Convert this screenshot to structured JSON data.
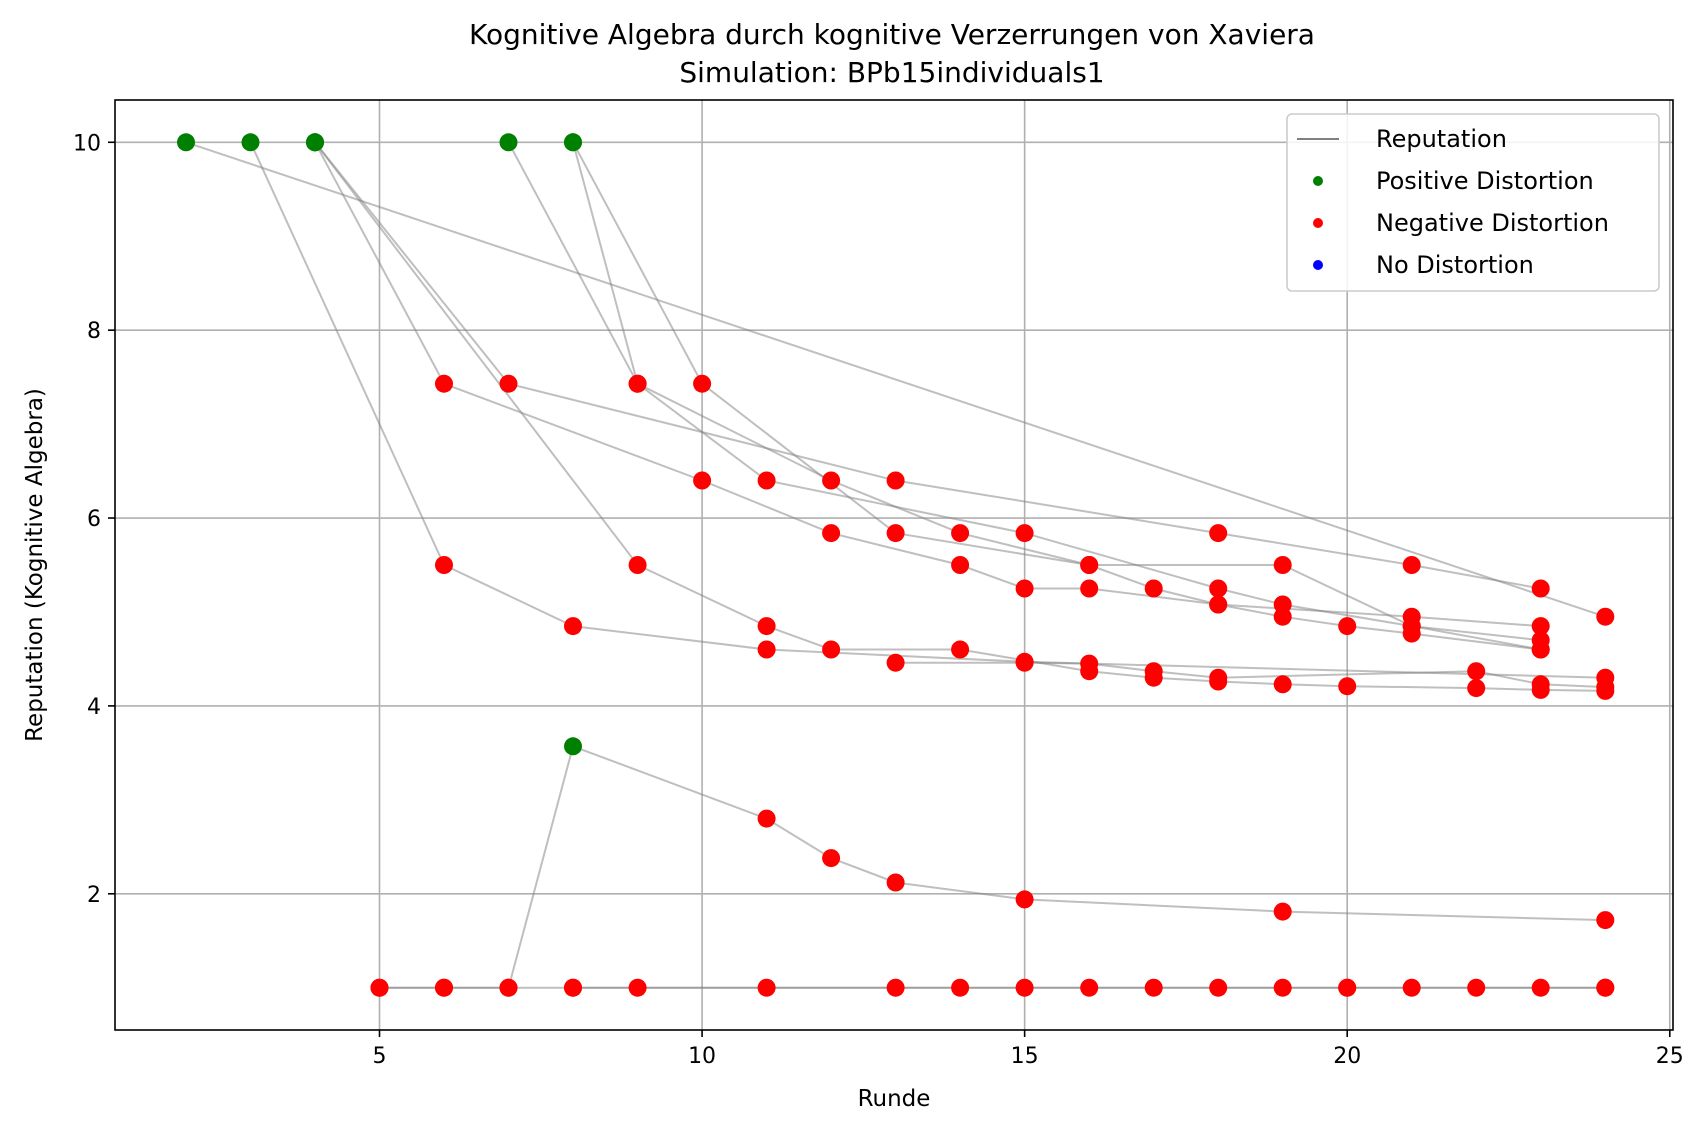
{
  "chart_data": {
    "type": "scatter",
    "title": "Kognitive Algebra durch kognitive Verzerrungen von Xaviera",
    "subtitle": "Simulation: BPb15individuals1",
    "xlabel": "Runde",
    "ylabel": "Reputation (Kognitive Algebra)",
    "xlim": [
      0.9,
      25.05
    ],
    "ylim": [
      0.55,
      10.45
    ],
    "xticks": [
      5,
      10,
      15,
      20,
      25
    ],
    "yticks": [
      2,
      4,
      6,
      8,
      10
    ],
    "grid": true,
    "legend_position": "top-right",
    "legend": [
      {
        "label": "Reputation",
        "kind": "line",
        "color": "#808080"
      },
      {
        "label": "Positive Distortion",
        "kind": "marker",
        "color": "#008000"
      },
      {
        "label": "Negative Distortion",
        "kind": "marker",
        "color": "#ff0000"
      },
      {
        "label": "No Distortion",
        "kind": "marker",
        "color": "#0000ff"
      }
    ],
    "colors": {
      "positive": "#008000",
      "negative": "#ff0000",
      "none": "#0000ff",
      "line": "#808080"
    },
    "series": [
      {
        "points": [
          [
            2,
            10,
            "positive"
          ],
          [
            24,
            4.95,
            "negative"
          ]
        ]
      },
      {
        "points": [
          [
            3,
            10,
            "positive"
          ],
          [
            6,
            5.5,
            "negative"
          ],
          [
            8,
            4.85,
            "negative"
          ],
          [
            11,
            4.6,
            "negative"
          ],
          [
            15,
            4.47,
            "negative"
          ],
          [
            24,
            4.3,
            "negative"
          ]
        ]
      },
      {
        "points": [
          [
            4,
            10,
            "positive"
          ],
          [
            9,
            5.5,
            "negative"
          ],
          [
            11,
            4.85,
            "negative"
          ],
          [
            12,
            4.6,
            "negative"
          ],
          [
            14,
            4.6,
            "negative"
          ],
          [
            16,
            4.37,
            "negative"
          ],
          [
            17,
            4.3,
            "negative"
          ],
          [
            18,
            4.26,
            "negative"
          ],
          [
            19,
            4.23,
            "negative"
          ],
          [
            20,
            4.21,
            "negative"
          ],
          [
            22,
            4.19,
            "negative"
          ],
          [
            23,
            4.17,
            "negative"
          ],
          [
            24,
            4.16,
            "negative"
          ]
        ]
      },
      {
        "points": [
          [
            4,
            10,
            "positive"
          ],
          [
            7,
            7.43,
            "negative"
          ],
          [
            13,
            6.4,
            "negative"
          ],
          [
            18,
            5.84,
            "negative"
          ],
          [
            21,
            5.5,
            "negative"
          ],
          [
            23,
            5.25,
            "negative"
          ]
        ]
      },
      {
        "points": [
          [
            4,
            10,
            "positive"
          ],
          [
            6,
            7.43,
            "negative"
          ],
          [
            10,
            6.4,
            "negative"
          ],
          [
            12,
            5.84,
            "negative"
          ],
          [
            14,
            5.5,
            "negative"
          ],
          [
            15,
            5.25,
            "negative"
          ],
          [
            16,
            5.25,
            "negative"
          ],
          [
            18,
            5.08,
            "negative"
          ],
          [
            21,
            4.95,
            "negative"
          ],
          [
            23,
            4.85,
            "negative"
          ]
        ]
      },
      {
        "points": [
          [
            7,
            10,
            "positive"
          ],
          [
            9,
            7.43,
            "negative"
          ],
          [
            12,
            6.4,
            "negative"
          ],
          [
            14,
            5.84,
            "negative"
          ],
          [
            16,
            5.5,
            "negative"
          ],
          [
            17,
            5.25,
            "negative"
          ],
          [
            18,
            5.08,
            "negative"
          ],
          [
            19,
            4.95,
            "negative"
          ],
          [
            20,
            4.85,
            "negative"
          ],
          [
            21,
            4.77,
            "negative"
          ],
          [
            23,
            4.6,
            "negative"
          ]
        ]
      },
      {
        "points": [
          [
            8,
            10,
            "positive"
          ],
          [
            9,
            7.43,
            "negative"
          ],
          [
            11,
            6.4,
            "negative"
          ],
          [
            15,
            5.84,
            "negative"
          ],
          [
            18,
            5.25,
            "negative"
          ],
          [
            19,
            5.08,
            "negative"
          ],
          [
            21,
            4.85,
            "negative"
          ],
          [
            23,
            4.7,
            "negative"
          ]
        ]
      },
      {
        "points": [
          [
            8,
            10,
            "positive"
          ],
          [
            10,
            7.43,
            "negative"
          ],
          [
            13,
            5.84,
            "negative"
          ],
          [
            16,
            5.5,
            "negative"
          ],
          [
            19,
            5.5,
            "negative"
          ],
          [
            21,
            4.85,
            "negative"
          ],
          [
            23,
            4.6,
            "negative"
          ]
        ]
      },
      {
        "points": [
          [
            13,
            4.46,
            "negative"
          ],
          [
            15,
            4.46,
            "negative"
          ],
          [
            16,
            4.45,
            "negative"
          ],
          [
            17,
            4.37,
            "negative"
          ],
          [
            18,
            4.3,
            "negative"
          ],
          [
            22,
            4.37,
            "negative"
          ],
          [
            23,
            4.23,
            "negative"
          ],
          [
            24,
            4.2,
            "negative"
          ]
        ]
      },
      {
        "points": [
          [
            5,
            1,
            "negative"
          ],
          [
            6,
            1,
            "negative"
          ],
          [
            7,
            1,
            "negative"
          ],
          [
            8,
            3.57,
            "positive"
          ],
          [
            11,
            2.8,
            "negative"
          ],
          [
            12,
            2.38,
            "negative"
          ],
          [
            13,
            2.12,
            "negative"
          ],
          [
            15,
            1.94,
            "negative"
          ],
          [
            19,
            1.81,
            "negative"
          ],
          [
            24,
            1.72,
            "negative"
          ]
        ]
      },
      {
        "points": [
          [
            5,
            1,
            "negative"
          ],
          [
            6,
            1,
            "negative"
          ],
          [
            7,
            1,
            "negative"
          ],
          [
            8,
            1,
            "negative"
          ],
          [
            9,
            1,
            "negative"
          ],
          [
            11,
            1,
            "negative"
          ],
          [
            13,
            1,
            "negative"
          ],
          [
            14,
            1,
            "negative"
          ],
          [
            15,
            1,
            "negative"
          ],
          [
            16,
            1,
            "negative"
          ],
          [
            17,
            1,
            "negative"
          ],
          [
            18,
            1,
            "negative"
          ],
          [
            19,
            1,
            "negative"
          ],
          [
            20,
            1,
            "negative"
          ],
          [
            21,
            1,
            "negative"
          ],
          [
            22,
            1,
            "negative"
          ],
          [
            23,
            1,
            "negative"
          ],
          [
            24,
            1,
            "negative"
          ]
        ]
      },
      {
        "points": [
          [
            8,
            1,
            "negative"
          ],
          [
            20,
            1,
            "negative"
          ],
          [
            24,
            1,
            "negative"
          ]
        ]
      }
    ]
  }
}
